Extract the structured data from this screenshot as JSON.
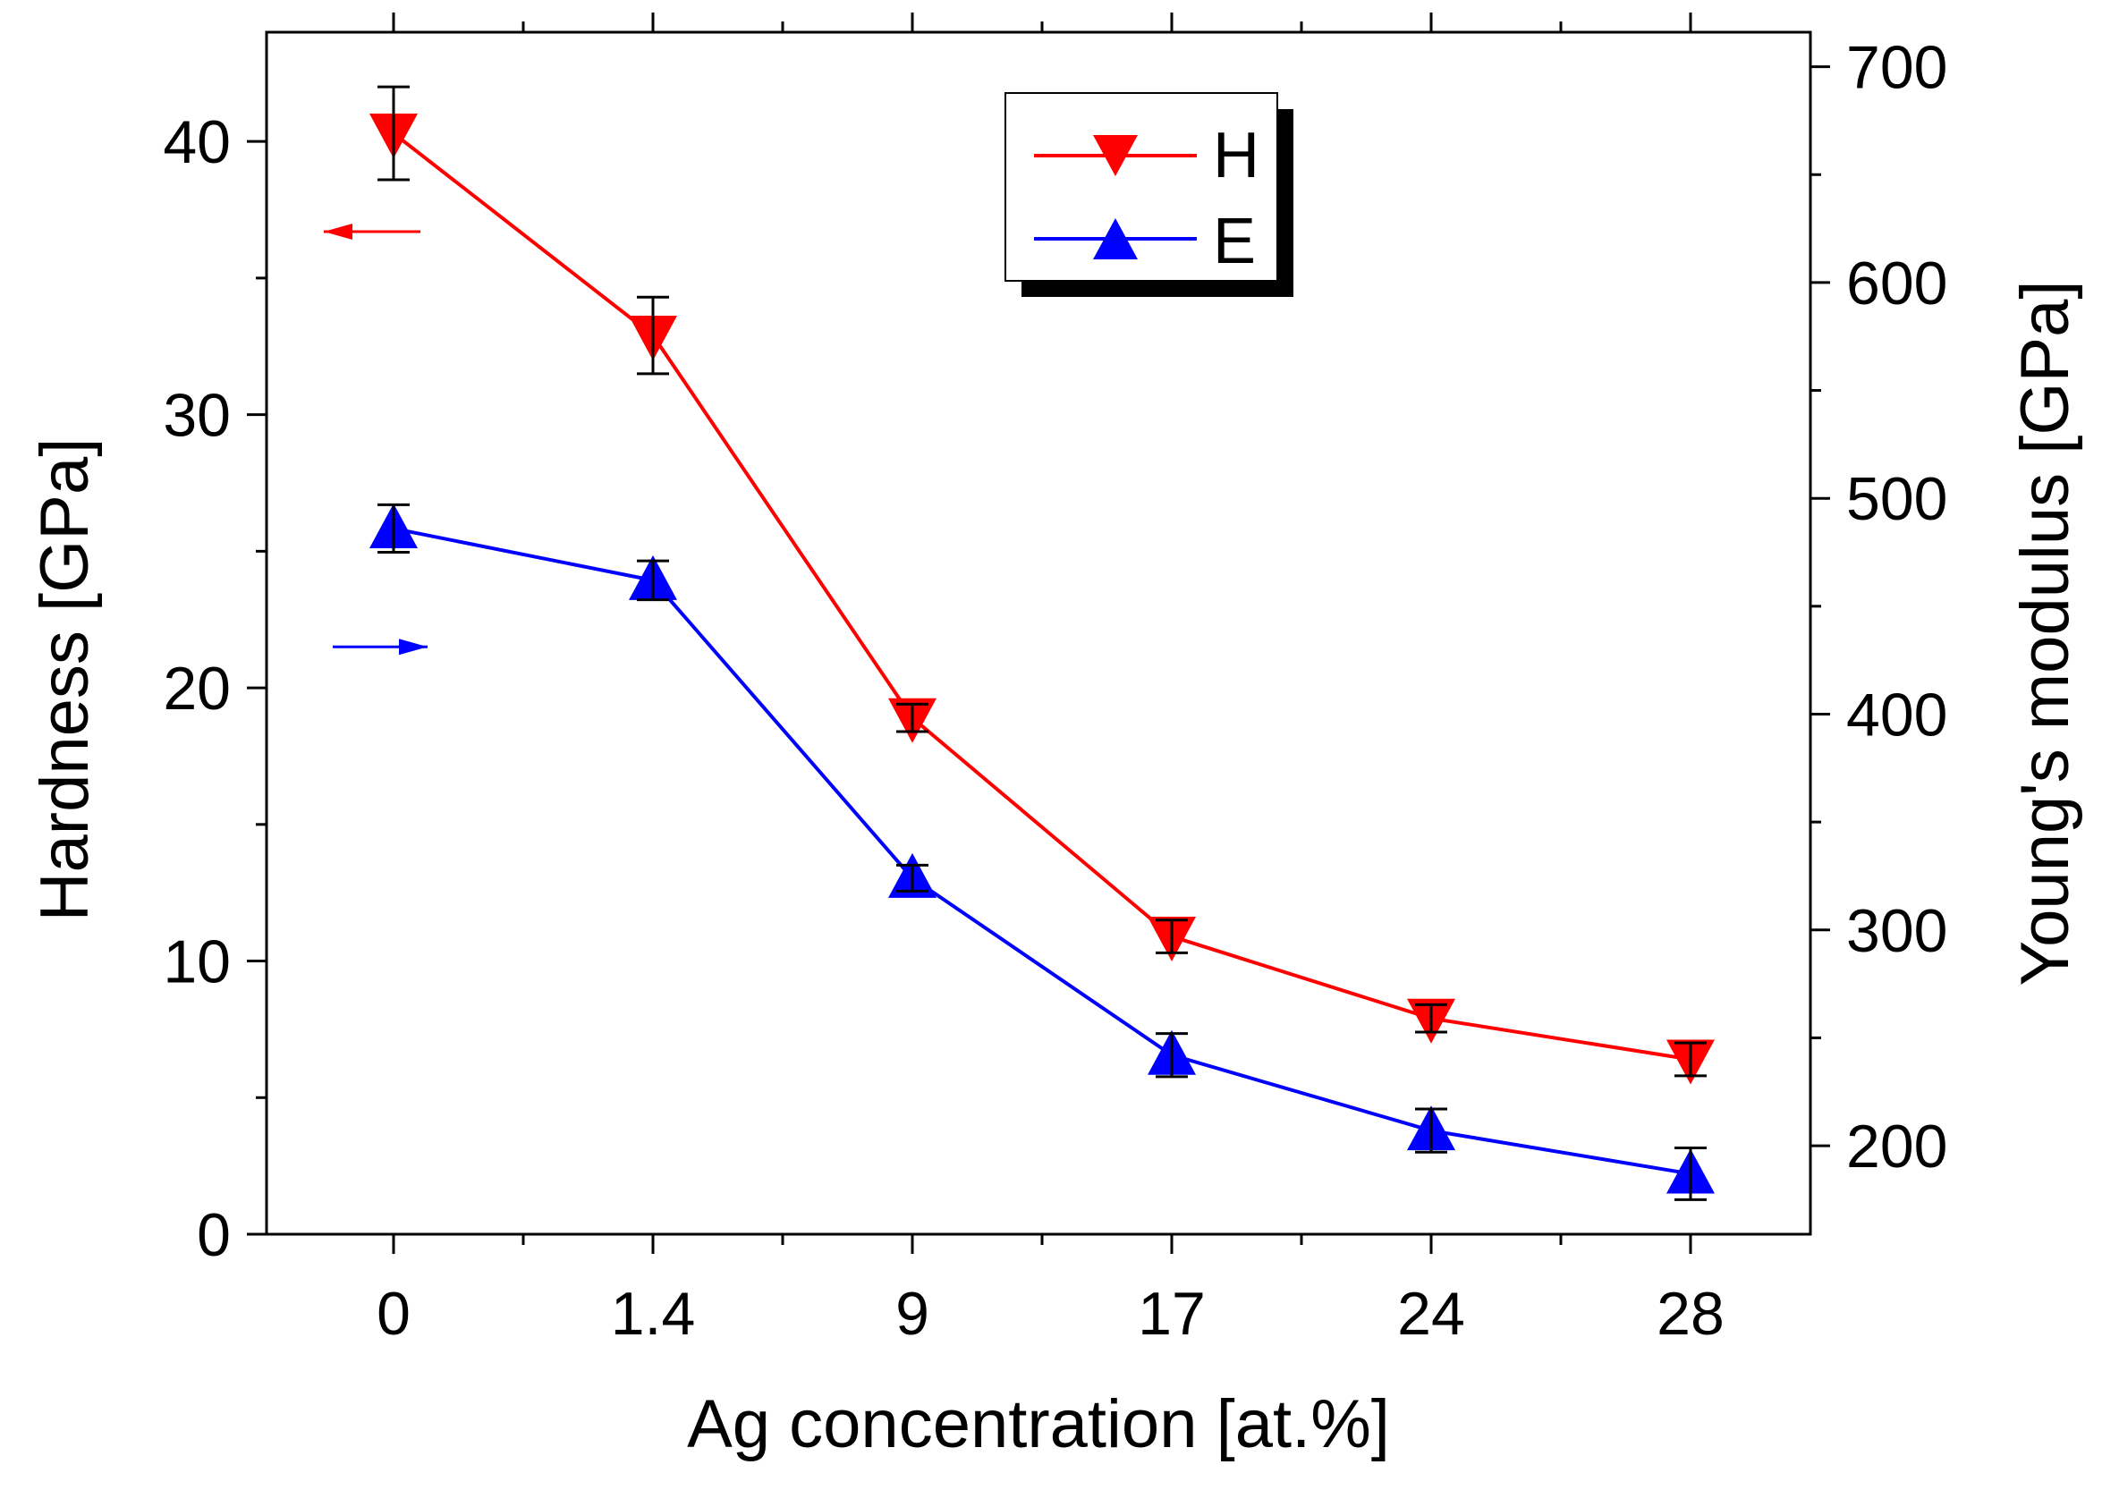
{
  "chart_data": {
    "type": "line",
    "title": "",
    "xlabel": "Ag concentration [at.%]",
    "ylabel_left": "Hardness [GPa]",
    "ylabel_right": "Young's modulus [GPa]",
    "categories": [
      "0",
      "1.4",
      "9",
      "17",
      "24",
      "28"
    ],
    "ylim_left": [
      0,
      44
    ],
    "ylim_right": [
      159,
      716
    ],
    "yticks_left": [
      0,
      10,
      20,
      30,
      40
    ],
    "yticks_right": [
      200,
      300,
      400,
      500,
      600,
      700
    ],
    "legend_position": "top-center",
    "grid": false,
    "series": [
      {
        "name": "H",
        "axis": "left",
        "marker": "triangle-down",
        "color": "#ff0000",
        "values": [
          40.3,
          32.9,
          18.9,
          10.9,
          7.9,
          6.4
        ],
        "errors": [
          1.7,
          1.4,
          0.5,
          0.6,
          0.5,
          0.6
        ]
      },
      {
        "name": "E",
        "axis": "right",
        "marker": "triangle-up",
        "color": "#0000ff",
        "values": [
          486,
          462,
          324,
          242,
          207,
          187
        ],
        "errors": [
          11,
          9,
          6,
          10,
          10,
          12
        ]
      }
    ],
    "annotations": [
      {
        "label": "left-arrow",
        "axis": "left",
        "direction": "left",
        "color": "#ff0000"
      },
      {
        "label": "right-arrow",
        "axis": "right",
        "direction": "right",
        "color": "#0000ff"
      }
    ]
  }
}
